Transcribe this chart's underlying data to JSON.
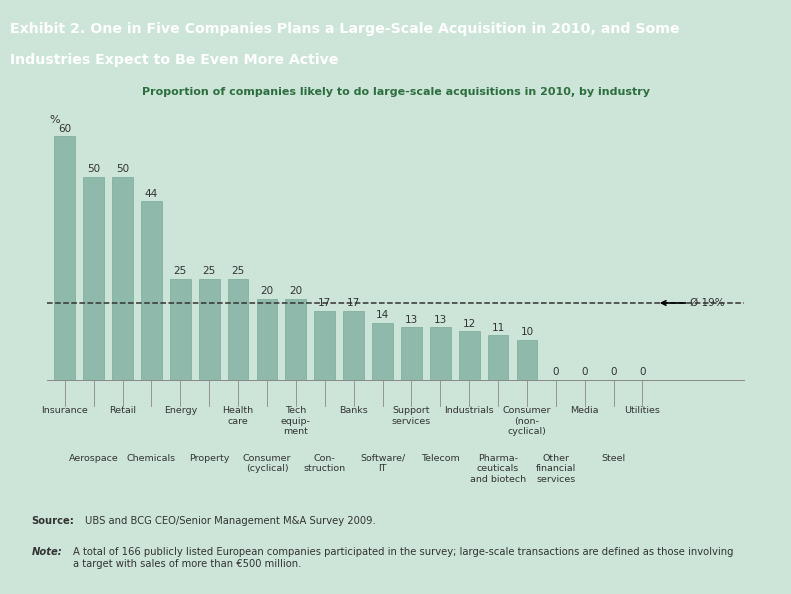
{
  "title": "Proportion of companies likely to do large-scale acquisitions in 2010, by industry",
  "header_line1": "Exhibit 2. One in Five Companies Plans a Large-Scale Acquisition in 2010, and Some",
  "header_line2": "Industries Expect to Be Even More Active",
  "values": [
    60,
    50,
    50,
    44,
    25,
    25,
    25,
    20,
    20,
    17,
    17,
    14,
    13,
    13,
    12,
    11,
    10,
    0,
    0,
    0,
    0
  ],
  "bar_color": "#8fbaab",
  "bar_edge_color": "#7aaa9a",
  "avg_line": 19,
  "avg_label": "Ø 19%",
  "ylabel": "%",
  "bg_color": "#cce5d8",
  "header_bg": "#1b6b47",
  "header_text_color": "#ffffff",
  "ylim": [
    0,
    68
  ],
  "source_bold": "Source:",
  "source_rest": " UBS and BCG CEO/Senior Management M&A Survey 2009.",
  "note_bold": "Note:",
  "note_rest": " A total of 166 publicly listed European companies participated in the survey; large-scale transactions are defined as those involving\na target with sales of more than €500 million.",
  "row1_labels": [
    "Insurance",
    "Retail",
    "Energy",
    "Health\ncare",
    "Tech\nequip-\nment",
    "Banks",
    "Support\nservices",
    "Industrials",
    "Consumer\n(non-\ncyclical)",
    "Media",
    "Utilities"
  ],
  "row1_positions": [
    0,
    2,
    4,
    6,
    8,
    10,
    12,
    14,
    16,
    18,
    20
  ],
  "row2_labels": [
    "Aerospace",
    "Chemicals",
    "Property",
    "Consumer\n(cyclical)",
    "Con-\nstruction",
    "Software/\nIT",
    "Telecom",
    "Pharma-\nceuticals\nand biotech",
    "Other\nfinancial\nservices",
    "Steel"
  ],
  "row2_positions": [
    1,
    3,
    5,
    7,
    9,
    11,
    13,
    15,
    17,
    19
  ]
}
